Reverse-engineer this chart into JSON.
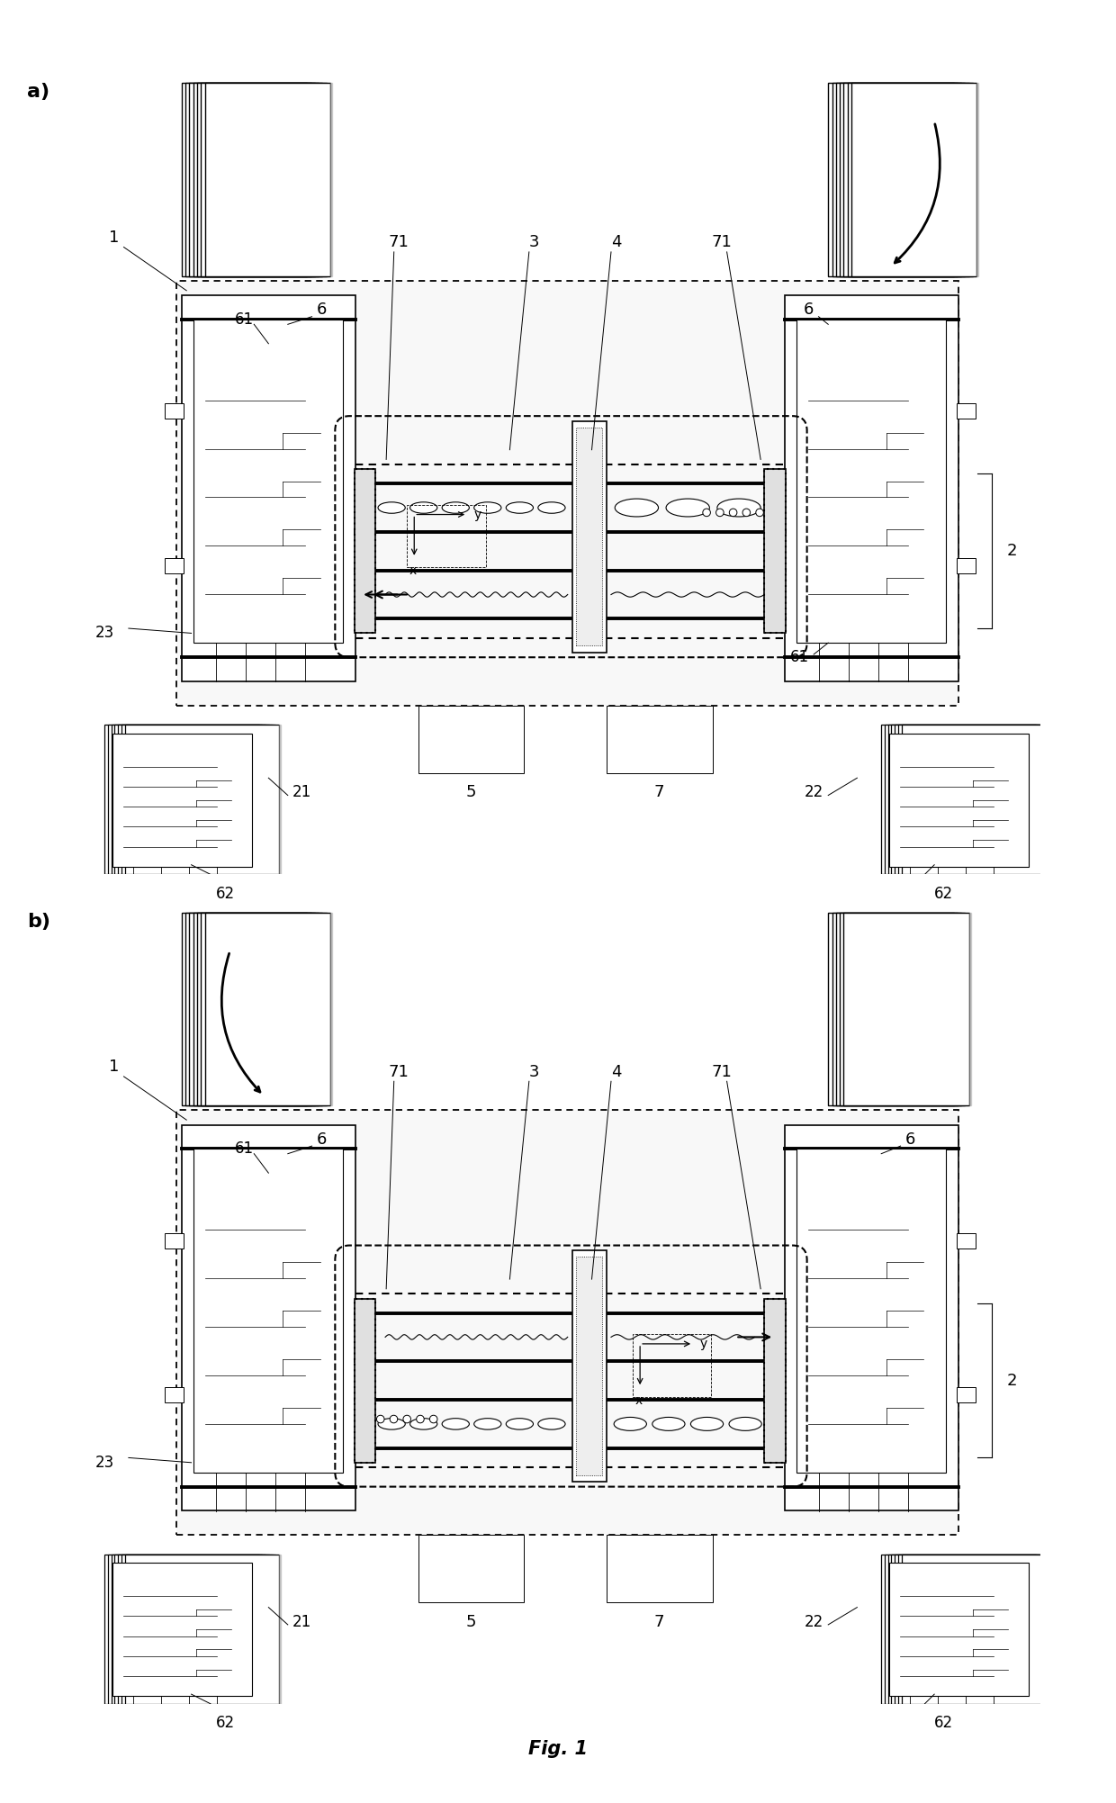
{
  "fig_width": 12.4,
  "fig_height": 20.03,
  "title": "Fig. 1",
  "bg": "#ffffff",
  "lw_thin": 0.7,
  "lw_med": 1.2,
  "lw_thick": 2.0,
  "lw_vthick": 2.8,
  "fs_label": 13,
  "fs_panel": 16,
  "fs_title": 15,
  "panel_a": {
    "letter": "a)",
    "is_a": true
  },
  "panel_b": {
    "letter": "b)",
    "is_a": false
  }
}
